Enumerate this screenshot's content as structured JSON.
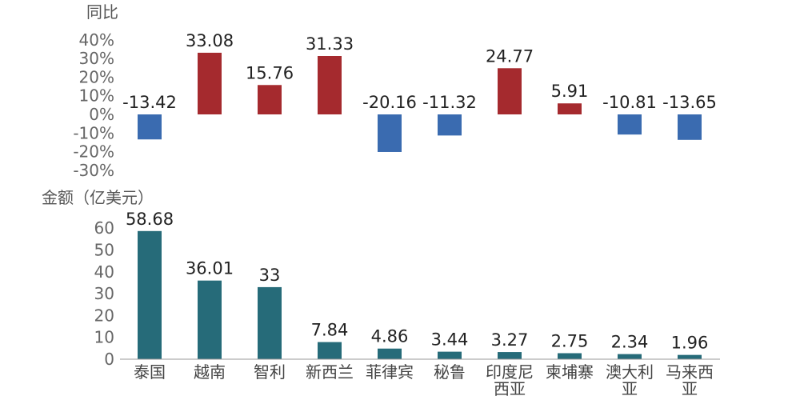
{
  "chart_data": [
    {
      "type": "bar",
      "ylabel": "同比",
      "categories": [
        "泰国",
        "越南",
        "智利",
        "新西兰",
        "菲律宾",
        "秘鲁",
        "印度尼西亚",
        "柬埔寨",
        "澳大利亚",
        "马来西亚"
      ],
      "values": [
        -13.42,
        33.08,
        15.76,
        31.33,
        -20.16,
        -11.32,
        24.77,
        5.91,
        -10.81,
        -13.65
      ],
      "value_labels": [
        "-13.42",
        "33.08",
        "15.76",
        "31.33",
        "-20.16",
        "-11.32",
        "24.77",
        "5.91",
        "-10.81",
        "-13.65"
      ],
      "ylim": [
        -30,
        40
      ],
      "yticks": [
        40,
        30,
        20,
        10,
        0,
        -10,
        -20,
        -30
      ],
      "ytick_labels": [
        "40%",
        "30%",
        "20%",
        "10%",
        "0%",
        "-10%",
        "-20%",
        "-30%"
      ],
      "colors": {
        "positive": "#a52a2e",
        "negative": "#3a6bb0"
      },
      "grid": false
    },
    {
      "type": "bar",
      "ylabel": "金额（亿美元）",
      "categories": [
        "泰国",
        "越南",
        "智利",
        "新西兰",
        "菲律宾",
        "秘鲁",
        "印度尼西亚",
        "柬埔寨",
        "澳大利亚",
        "马来西亚"
      ],
      "category_lines": [
        [
          "泰国"
        ],
        [
          "越南"
        ],
        [
          "智利"
        ],
        [
          "新西兰"
        ],
        [
          "菲律宾"
        ],
        [
          "秘鲁"
        ],
        [
          "印度尼",
          "西亚"
        ],
        [
          "柬埔寨"
        ],
        [
          "澳大利",
          "亚"
        ],
        [
          "马来西",
          "亚"
        ]
      ],
      "values": [
        58.68,
        36.01,
        33,
        7.84,
        4.86,
        3.44,
        3.27,
        2.75,
        2.34,
        1.96
      ],
      "value_labels": [
        "58.68",
        "36.01",
        "33",
        "7.84",
        "4.86",
        "3.44",
        "3.27",
        "2.75",
        "2.34",
        "1.96"
      ],
      "ylim": [
        0,
        60
      ],
      "yticks": [
        60,
        50,
        40,
        30,
        20,
        10,
        0
      ],
      "ytick_labels": [
        "60",
        "50",
        "40",
        "30",
        "20",
        "10",
        "0"
      ],
      "colors": {
        "bar": "#266b79"
      },
      "grid": false
    }
  ]
}
